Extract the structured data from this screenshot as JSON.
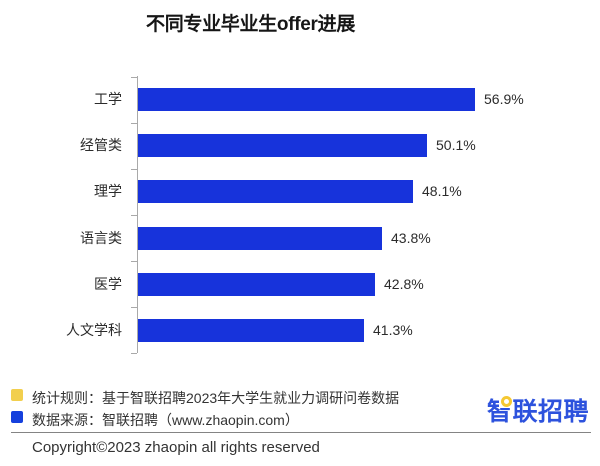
{
  "title": "不同专业毕业生offer进展",
  "chart_data": {
    "type": "bar",
    "orientation": "horizontal",
    "title": "不同专业毕业生offer进展",
    "categories": [
      "工学",
      "经管类",
      "理学",
      "语言类",
      "医学",
      "人文学科"
    ],
    "values": [
      56.9,
      50.1,
      48.1,
      43.8,
      42.8,
      41.3
    ],
    "value_labels": [
      "56.9%",
      "50.1%",
      "48.1%",
      "43.8%",
      "42.8%",
      "41.3%"
    ],
    "bar_color": "#1733db",
    "axis_color": "#a9a9a9",
    "xlim": [
      10,
      60
    ],
    "grid": false,
    "legend": "none"
  },
  "footer": {
    "legend": [
      {
        "color": "#f2cf4e",
        "label": "统计规则：",
        "text": "统计规则：基于智联招聘2023年大学生就业力调研问卷数据"
      },
      {
        "color": "#1540dd",
        "label": "数据来源：",
        "text": "数据来源：智联招聘（www.zhaopin.com）"
      }
    ],
    "copyright": "Copyright©2023 zhaopin all rights reserved",
    "logo_text": "智联招聘",
    "logo_color": "#2d52dd",
    "logo_dot_color": "#f5c832"
  }
}
